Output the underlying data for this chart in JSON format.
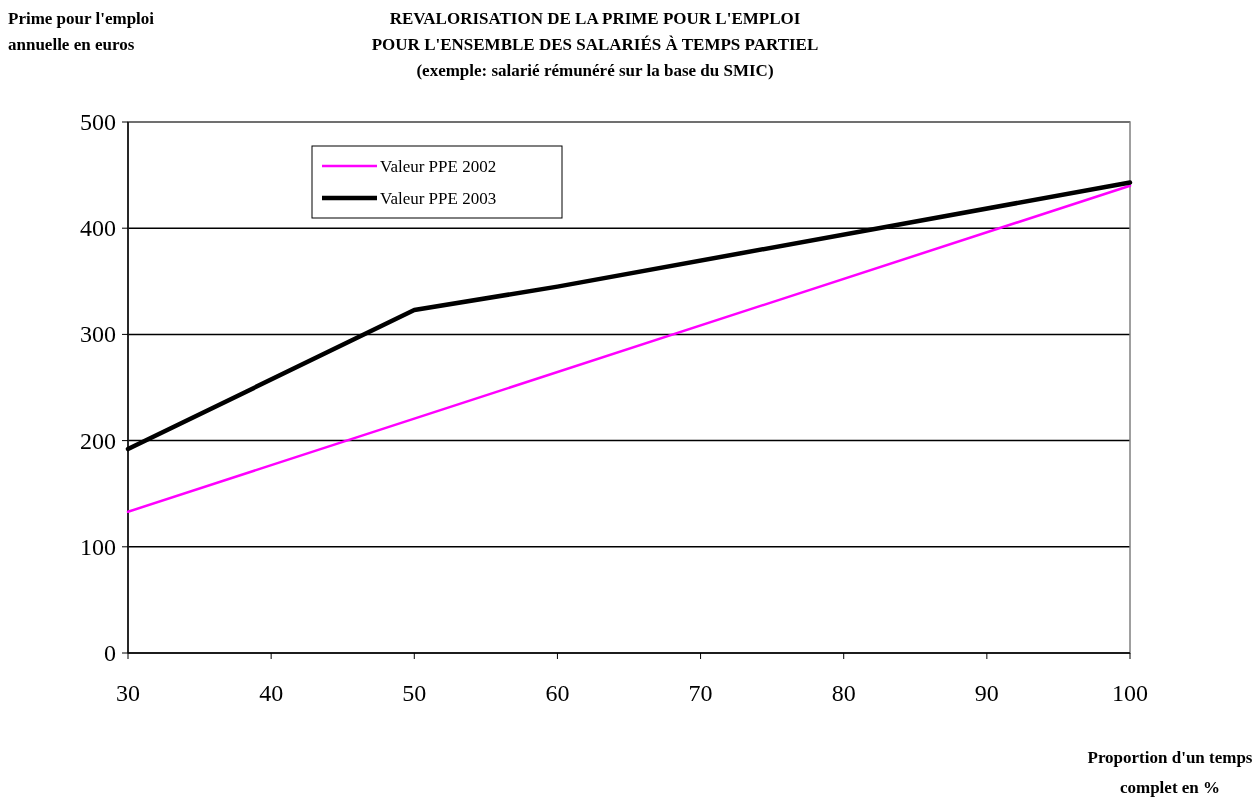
{
  "chart_data": {
    "type": "line",
    "title": "REVALORISATION DE LA PRIME POUR L'EMPLOI\nPOUR L'ENSEMBLE DES SALARIÉS À TEMPS PARTIEL\n(exemple: salarié rémunéré sur la base du SMIC)",
    "xlabel": "Proportion d'un temps\ncomplet en %",
    "ylabel": "Prime pour l'emploi\nannuelle en euros",
    "series": [
      {
        "name": "Valeur PPE 2002",
        "color": "#ff00ff",
        "x": [
          30,
          100
        ],
        "values": [
          133,
          440
        ]
      },
      {
        "name": "Valeur PPE 2003",
        "color": "#000000",
        "x": [
          30,
          50,
          60,
          100
        ],
        "values": [
          192,
          323,
          345,
          443
        ]
      }
    ],
    "xlim": [
      30,
      100
    ],
    "xticks": [
      30,
      40,
      50,
      60,
      70,
      80,
      90,
      100
    ],
    "ylim": [
      0,
      500
    ],
    "yticks": [
      0,
      100,
      200,
      300,
      400,
      500
    ],
    "grid": "y",
    "legend": "top left",
    "marker": "none",
    "line_style": "solid"
  }
}
